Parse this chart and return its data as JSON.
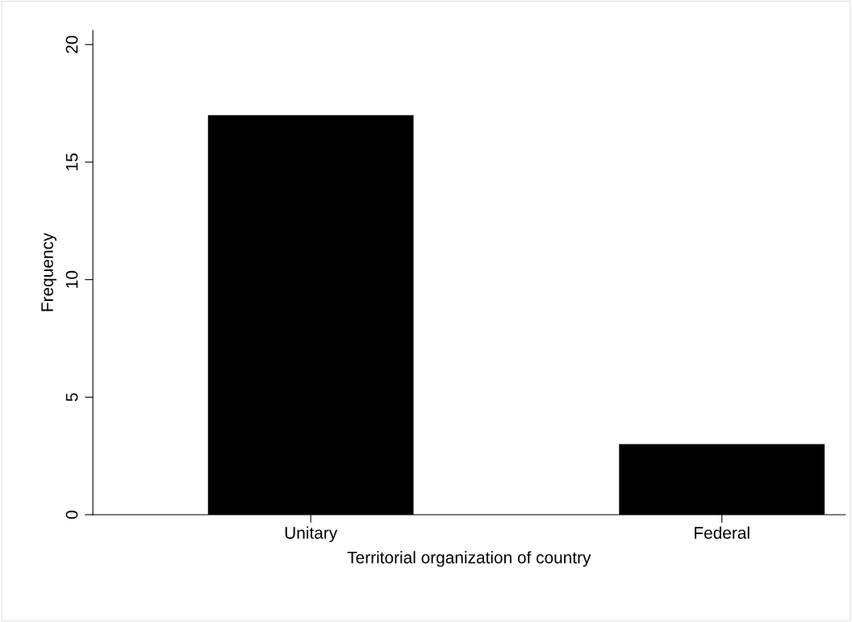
{
  "chart_data": {
    "type": "bar",
    "xlabel": "Territorial organization of country",
    "ylabel": "Frequency",
    "categories": [
      "Unitary",
      "Federal"
    ],
    "values": [
      17,
      3
    ],
    "color": "#000000",
    "ylim": [
      0,
      20.6
    ],
    "yticks": [
      0,
      5,
      10,
      15,
      20
    ],
    "grid": false
  }
}
